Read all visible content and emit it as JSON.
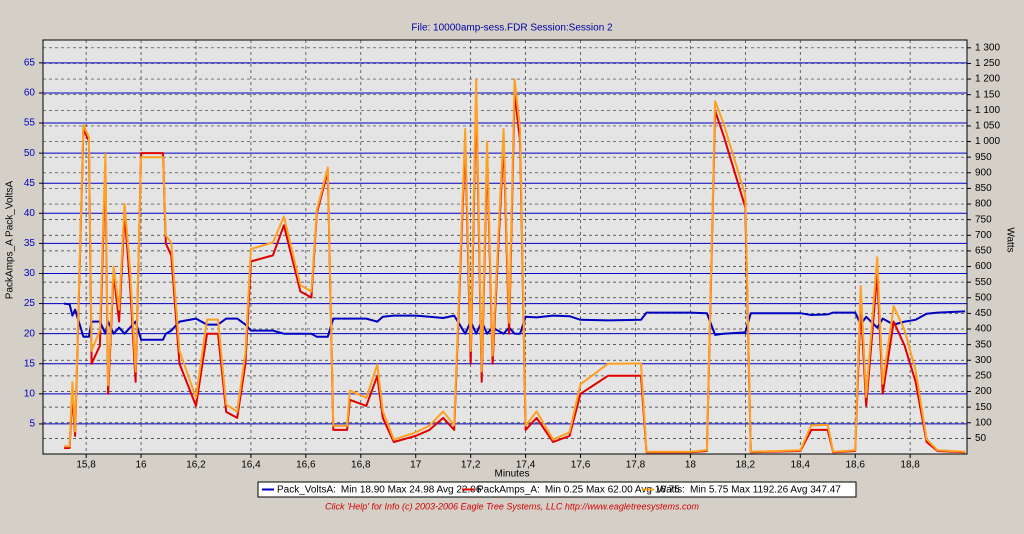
{
  "chart_data": {
    "type": "line",
    "title": "File: 10000amp-sess.FDR   Session:Session 2",
    "x_label": "Minutes",
    "y_label": "PackAmps_A  Pack_VoltsA",
    "y2_label": "Watts",
    "footer": "Click 'Help' for Info  (c) 2003-2006 Eagle Tree Systems, LLC     http://www.eagletreesystems.com",
    "xlim": [
      15.643,
      19.007
    ],
    "xticks": [
      {
        "value": 15.8,
        "label": "15,8"
      },
      16,
      {
        "value": 16.2,
        "label": "16,2"
      },
      {
        "value": 16.4,
        "label": "16,4"
      },
      {
        "value": 16.6,
        "label": "16,6"
      },
      {
        "value": 16.8,
        "label": "16,8"
      },
      17,
      {
        "value": 17.2,
        "label": "17,2"
      },
      {
        "value": 17.4,
        "label": "17,4"
      },
      {
        "value": 17.6,
        "label": "17,6"
      },
      {
        "value": 17.8,
        "label": "17,8"
      },
      18,
      {
        "value": 18.2,
        "label": "18,2"
      },
      {
        "value": 18.4,
        "label": "18,4"
      },
      {
        "value": 18.6,
        "label": "18,6"
      },
      {
        "value": 18.8,
        "label": "18,8"
      }
    ],
    "ylim": [
      0,
      68.8
    ],
    "yticks": [
      5,
      10,
      15,
      20,
      25,
      30,
      35,
      40,
      45,
      50,
      55,
      60,
      65
    ],
    "y2lim": [
      0,
      1325
    ],
    "y2ticks": [
      50,
      100,
      150,
      200,
      250,
      300,
      350,
      400,
      450,
      500,
      550,
      600,
      650,
      700,
      750,
      800,
      850,
      900,
      950,
      {
        "value": 1000,
        "label": "1 000"
      },
      {
        "value": 1050,
        "label": "1 050"
      },
      {
        "value": 1100,
        "label": "1 100"
      },
      {
        "value": 1150,
        "label": "1 150"
      },
      {
        "value": 1200,
        "label": "1 200"
      },
      {
        "value": 1250,
        "label": "1 250"
      },
      {
        "value": 1300,
        "label": "1 300"
      }
    ],
    "grid": true,
    "x": [
      15.72,
      15.74,
      15.75,
      15.76,
      15.79,
      15.81,
      15.82,
      15.85,
      15.87,
      15.88,
      15.9,
      15.92,
      15.94,
      15.96,
      15.98,
      16.0,
      16.08,
      16.09,
      16.11,
      16.14,
      16.2,
      16.24,
      16.28,
      16.31,
      16.35,
      16.38,
      16.4,
      16.48,
      16.52,
      16.58,
      16.62,
      16.64,
      16.68,
      16.7,
      16.75,
      16.76,
      16.82,
      16.86,
      16.88,
      16.92,
      17.0,
      17.05,
      17.1,
      17.14,
      17.18,
      17.2,
      17.22,
      17.24,
      17.26,
      17.28,
      17.32,
      17.34,
      17.36,
      17.38,
      17.4,
      17.44,
      17.5,
      17.56,
      17.6,
      17.7,
      17.82,
      17.84,
      18.0,
      18.06,
      18.09,
      18.12,
      18.2,
      18.22,
      18.4,
      18.44,
      18.5,
      18.52,
      18.6,
      18.62,
      18.64,
      18.68,
      18.7,
      18.74,
      18.78,
      18.82,
      18.86,
      18.9,
      19.0
    ],
    "series": [
      {
        "name": "Pack_VoltsA:",
        "stats": "Min 18.90 Max 24.98 Avg 22.06",
        "color": "#0000c0",
        "axis": "y",
        "values": [
          25,
          24.9,
          23,
          24,
          19.5,
          19.5,
          22,
          22,
          20,
          22,
          20,
          21,
          20,
          21,
          22,
          19,
          19,
          20,
          20.5,
          22,
          22.5,
          21.5,
          21.5,
          22.5,
          22.5,
          21.5,
          20.5,
          20.5,
          20,
          20,
          20,
          19.5,
          19.5,
          22.5,
          22.5,
          22.5,
          22.5,
          22,
          22.8,
          23,
          23,
          22.8,
          22.6,
          23,
          20,
          22,
          20,
          22,
          20,
          21,
          20,
          21,
          20,
          20,
          22.8,
          22.7,
          23,
          22.9,
          22.3,
          22.2,
          22.3,
          23.5,
          23.5,
          23.4,
          19.8,
          20,
          20.2,
          23.4,
          23.4,
          23.1,
          23.2,
          23.5,
          23.5,
          21.5,
          22.8,
          21,
          22.5,
          21.5,
          22,
          22.3,
          23.3,
          23.5,
          23.7
        ]
      },
      {
        "name": "PackAmps_A:",
        "stats": "Min 0.25 Max 62.00 Avg 16.75",
        "color": "#e00000",
        "axis": "y",
        "values": [
          1,
          1,
          10,
          3,
          54,
          52,
          15,
          18,
          48,
          10,
          30,
          22,
          40,
          28,
          12,
          50,
          50,
          35,
          33,
          15,
          8,
          20,
          20,
          7,
          6,
          15,
          32,
          33,
          38,
          27,
          26,
          40,
          47,
          4,
          4,
          9,
          8,
          13,
          6,
          2,
          3,
          4,
          6,
          4,
          52,
          15,
          60,
          12,
          50,
          15,
          52,
          20,
          60,
          52,
          4,
          6,
          2,
          3,
          10,
          13,
          13,
          0.3,
          0.3,
          0.5,
          57,
          53,
          41,
          0.3,
          0.5,
          4,
          4,
          0.3,
          0.5,
          25,
          8,
          30,
          10,
          22,
          18,
          12,
          2,
          0.5,
          0.3
        ]
      },
      {
        "name": "Watts:",
        "stats": "Min 5.75 Max 1192.26 Avg 347.47",
        "color": "#ffa020",
        "axis": "y2",
        "values": [
          25,
          25,
          230,
          72,
          1053,
          1014,
          330,
          396,
          960,
          220,
          600,
          462,
          800,
          588,
          264,
          950,
          950,
          700,
          676,
          330,
          180,
          430,
          430,
          158,
          135,
          323,
          656,
          677,
          760,
          540,
          520,
          780,
          917,
          90,
          90,
          203,
          180,
          286,
          137,
          46,
          69,
          91,
          136,
          92,
          1040,
          330,
          1200,
          264,
          1000,
          315,
          1040,
          420,
          1200,
          1040,
          91,
          136,
          46,
          69,
          223,
          289,
          290,
          7,
          7,
          12,
          1129,
          1060,
          828,
          7,
          12,
          92,
          93,
          7,
          12,
          538,
          182,
          630,
          225,
          473,
          396,
          268,
          47,
          12,
          7
        ]
      }
    ]
  }
}
